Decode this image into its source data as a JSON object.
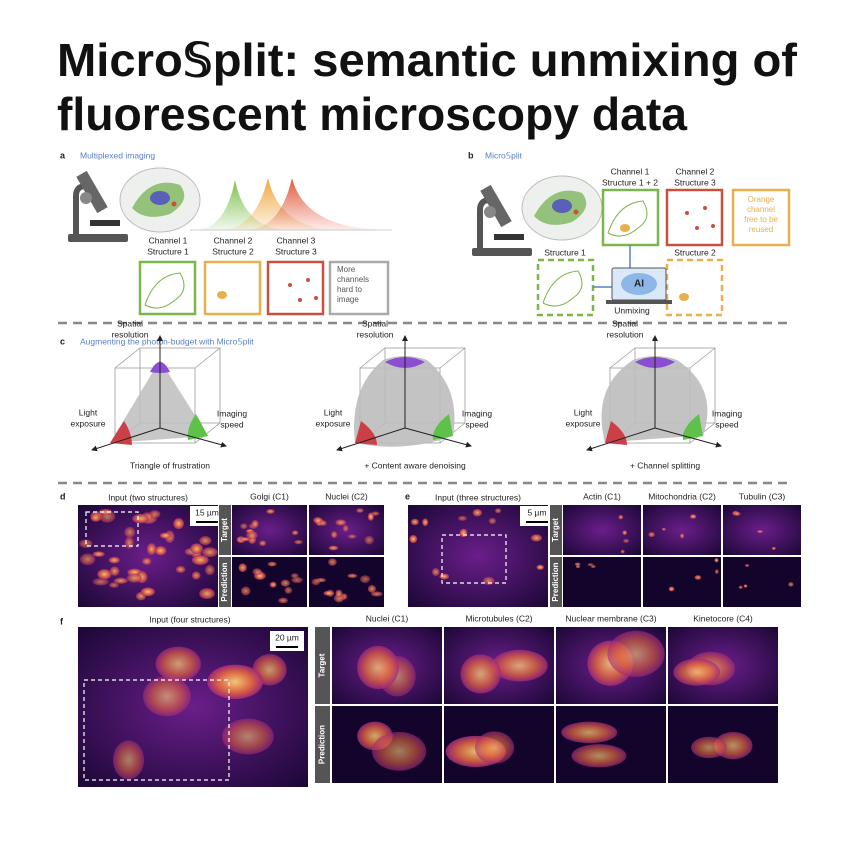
{
  "title_lines": [
    "Micro𝕊plit: semantic unmixing of",
    "fluorescent microscopy data"
  ],
  "panel_a": {
    "label": "a",
    "heading": "Multiplexed imaging",
    "channels": [
      [
        "Channel 1",
        "Structure 1"
      ],
      [
        "Channel 2",
        "Structure 2"
      ],
      [
        "Channel 3",
        "Structure 3"
      ]
    ],
    "extra": [
      "More",
      "channels",
      "hard to",
      "image"
    ]
  },
  "panel_b": {
    "label": "b",
    "heading": "Micro𝕊plit",
    "channels": [
      [
        "Channel 1",
        "Structure 1 + 2"
      ],
      [
        "Channel 2",
        "Structure 3"
      ]
    ],
    "free_note": [
      "Orange",
      "channel",
      "free to be",
      "reused"
    ],
    "outputs": [
      "Structure 1",
      "Structure 2"
    ],
    "ai": "AI",
    "ai_caption": "Unmixing"
  },
  "panel_c": {
    "label": "c",
    "heading": "Augmenting the photon-budget with Micro𝕊plit",
    "diagrams": [
      {
        "top": [
          "Spatial",
          "resolution"
        ],
        "left": [
          "Light",
          "exposure"
        ],
        "right": [
          "Imaging",
          "speed"
        ],
        "caption": "Triangle of frustration"
      },
      {
        "top": [
          "Spatial",
          "resolution"
        ],
        "left": [
          "Light",
          "exposure"
        ],
        "right": [
          "Imaging",
          "speed"
        ],
        "caption": "+ Content aware denoising"
      },
      {
        "top": [
          "Spatial",
          "resolution"
        ],
        "left": [
          "Light",
          "exposure"
        ],
        "right": [
          "Imaging",
          "speed"
        ],
        "caption": "+ Channel splitting"
      }
    ]
  },
  "panel_d": {
    "label": "d",
    "input": "Input (two structures)",
    "scale": "15 µm",
    "channels": [
      "Golgi (C1)",
      "Nuclei (C2)"
    ],
    "rows": [
      "Target",
      "Prediction"
    ]
  },
  "panel_e": {
    "label": "e",
    "input": "Input (three structures)",
    "scale": "5 µm",
    "channels": [
      "Actin (C1)",
      "Mitochondria (C2)",
      "Tubulin (C3)"
    ],
    "rows": [
      "Target",
      "Prediction"
    ]
  },
  "panel_f": {
    "label": "f",
    "input": "Input (four structures)",
    "scale": "20 µm",
    "channels": [
      "Nuclei (C1)",
      "Microtubules (C2)",
      "Nuclear membrane (C3)",
      "Kinetocore (C4)"
    ],
    "rows": [
      "Target",
      "Prediction"
    ]
  }
}
